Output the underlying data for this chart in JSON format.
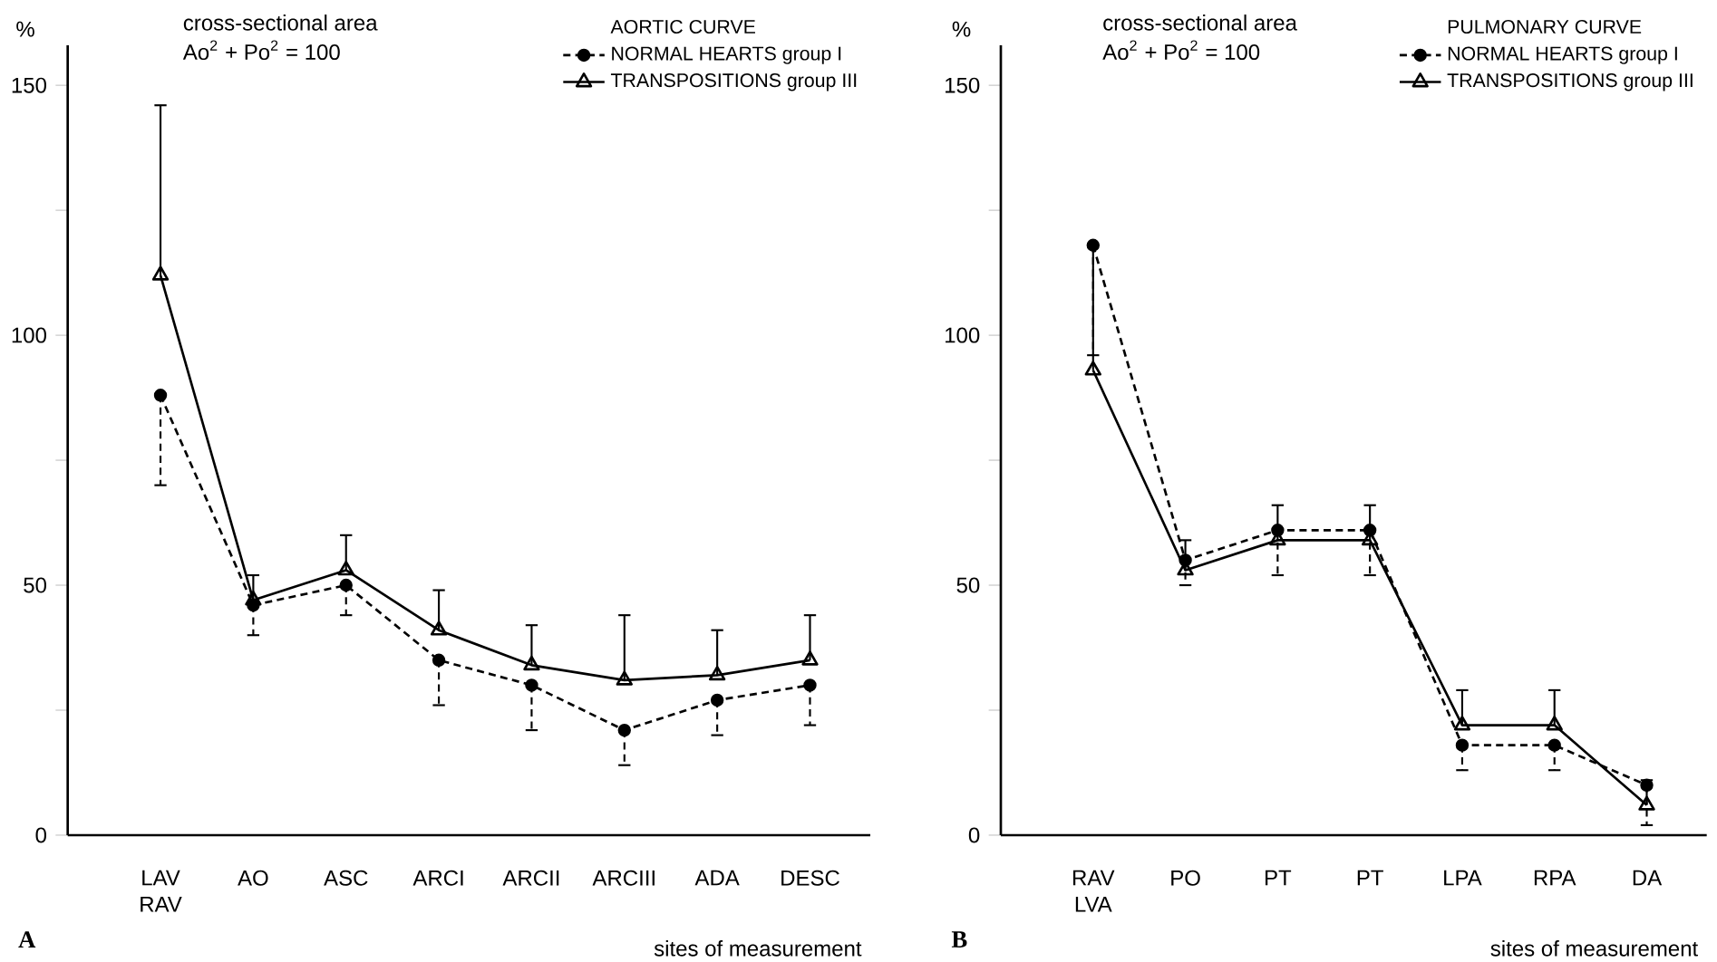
{
  "chart_data": [
    {
      "type": "line",
      "legend_title": "AORTIC CURVE",
      "ylabel": "%",
      "xlabel": "sites of measurement",
      "categories": [
        "LAV RAV",
        "AO",
        "ASC",
        "ARCI",
        "ARCII",
        "ARCIII",
        "ADA",
        "DESC"
      ],
      "series": [
        {
          "name": "NORMAL HEARTS group I",
          "color": "#000000",
          "marker": "circle",
          "line_style": "dashed",
          "values": [
            88,
            46,
            50,
            35,
            30,
            21,
            27,
            30
          ],
          "errors": [
            [
              70,
              88
            ],
            [
              40,
              46
            ],
            [
              44,
              50
            ],
            [
              26,
              35
            ],
            [
              21,
              30
            ],
            [
              14,
              21
            ],
            [
              20,
              27
            ],
            [
              22,
              30
            ]
          ]
        },
        {
          "name": "TRANSPOSITIONS group III",
          "color": "#000000",
          "marker": "triangle",
          "line_style": "solid",
          "values": [
            112,
            47,
            53,
            41,
            34,
            31,
            32,
            35
          ],
          "errors": [
            [
              112,
              146
            ],
            [
              47,
              52
            ],
            [
              53,
              60
            ],
            [
              41,
              49
            ],
            [
              34,
              42
            ],
            [
              31,
              44
            ],
            [
              32,
              41
            ],
            [
              35,
              44
            ]
          ]
        }
      ],
      "ylim": [
        0,
        158
      ],
      "yticks": [
        0,
        {
          "value": 25,
          "label": null
        },
        50,
        {
          "value": 75,
          "label": null
        },
        100,
        {
          "value": 125,
          "label": null
        },
        150
      ],
      "legend": "top right",
      "annotations": [
        "cross-sectional area",
        "Ao$^{2}$ + Po$^{2}$ = 100",
        "A"
      ]
    },
    {
      "type": "line",
      "legend_title": "PULMONARY CURVE",
      "ylabel": "%",
      "xlabel": "sites of measurement",
      "categories": [
        "RAV LVA",
        "PO",
        "PT",
        "PT",
        "LPA",
        "RPA",
        "DA"
      ],
      "series": [
        {
          "name": "NORMAL HEARTS group I",
          "color": "#000000",
          "marker": "circle",
          "line_style": "dashed",
          "values": [
            118,
            55,
            61,
            61,
            18,
            18,
            10
          ],
          "errors": [
            [
              96,
              118
            ],
            [
              50,
              55
            ],
            [
              52,
              61
            ],
            [
              52,
              61
            ],
            [
              13,
              18
            ],
            [
              13,
              18
            ],
            [
              2,
              10
            ]
          ]
        },
        {
          "name": "TRANSPOSITIONS group III",
          "color": "#000000",
          "marker": "triangle",
          "line_style": "solid",
          "values": [
            93,
            53,
            59,
            59,
            22,
            22,
            6
          ],
          "errors": [
            [
              93,
              118
            ],
            [
              53,
              59
            ],
            [
              59,
              66
            ],
            [
              59,
              66
            ],
            [
              22,
              29
            ],
            [
              22,
              29
            ],
            [
              6,
              11
            ]
          ]
        }
      ],
      "ylim": [
        0,
        158
      ],
      "yticks": [
        0,
        {
          "value": 25,
          "label": null
        },
        50,
        {
          "value": 75,
          "label": null
        },
        100,
        {
          "value": 125,
          "label": null
        },
        150
      ],
      "legend": "top right",
      "annotations": [
        "cross-sectional area",
        "Ao$^{2}$ + Po$^{2}$ = 100",
        "B"
      ]
    }
  ]
}
